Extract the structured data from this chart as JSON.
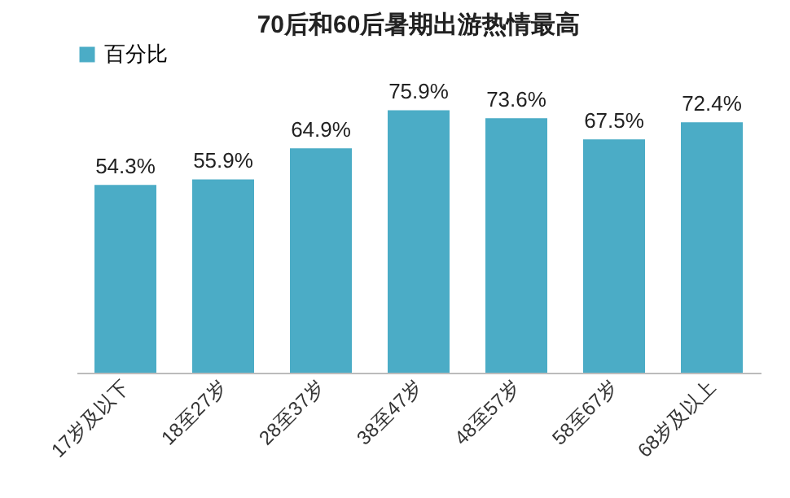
{
  "chart_data": {
    "type": "bar",
    "title": "70后和60后暑期出游热情最高",
    "categories": [
      "17岁及以下",
      "18至27岁",
      "28至37岁",
      "38至47岁",
      "48至57岁",
      "58至67岁",
      "68岁及以上"
    ],
    "series": [
      {
        "name": "百分比",
        "color": "#4bacc6",
        "values": [
          54.3,
          55.9,
          64.9,
          75.9,
          73.6,
          67.5,
          72.4
        ],
        "value_labels": [
          "54.3%",
          "55.9%",
          "64.9%",
          "75.9%",
          "73.6%",
          "67.5%",
          "72.4%"
        ]
      }
    ],
    "legend": "top"
  }
}
